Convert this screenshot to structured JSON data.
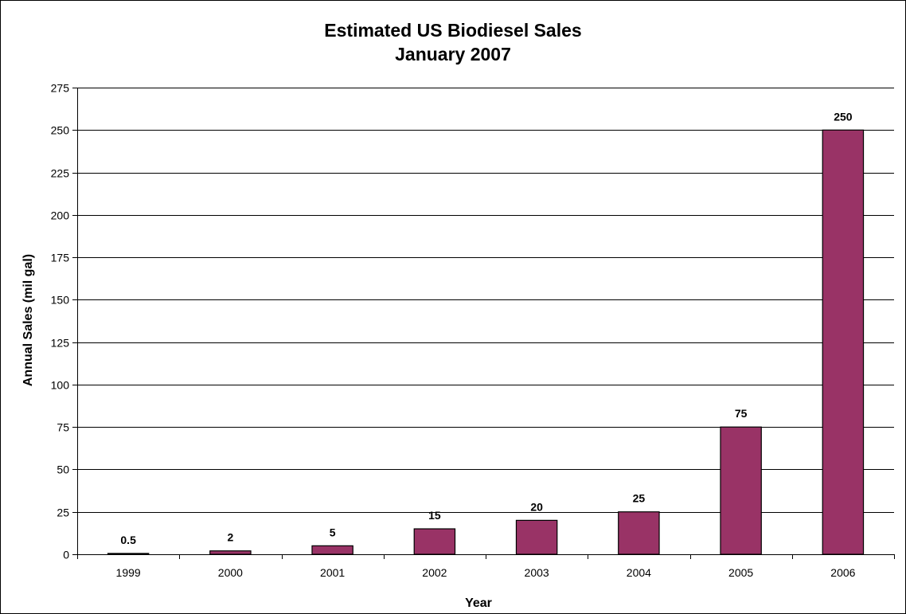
{
  "chart_data": {
    "type": "bar",
    "title": "Estimated US Biodiesel Sales",
    "subtitle": "January 2007",
    "xlabel": "Year",
    "ylabel": "Annual Sales (mil gal)",
    "categories": [
      "1999",
      "2000",
      "2001",
      "2002",
      "2003",
      "2004",
      "2005",
      "2006"
    ],
    "values": [
      0.5,
      2,
      5,
      15,
      20,
      25,
      75,
      250
    ],
    "data_labels": [
      "0.5",
      "2",
      "5",
      "15",
      "20",
      "25",
      "75",
      "250"
    ],
    "ylim": [
      0,
      275
    ],
    "yticks": [
      0,
      25,
      50,
      75,
      100,
      125,
      150,
      175,
      200,
      225,
      250,
      275
    ],
    "grid": true,
    "legend": "none",
    "bar_color": "#993366"
  }
}
